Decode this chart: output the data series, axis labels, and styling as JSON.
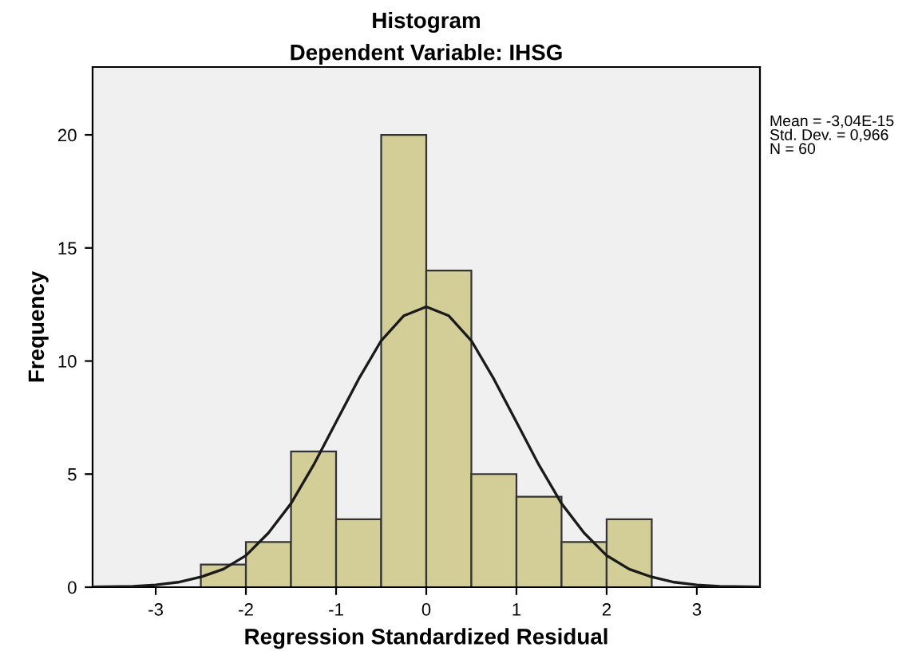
{
  "chart_data": {
    "type": "histogram",
    "title": "Histogram",
    "subtitle": "Dependent Variable: IHSG",
    "xlabel": "Regression Standardized Residual",
    "ylabel": "Frequency",
    "bins": [
      -2.5,
      -2.0,
      -1.5,
      -1.0,
      -0.5,
      0.0,
      0.5,
      1.0,
      1.5,
      2.0,
      2.5
    ],
    "values": [
      1,
      2,
      6,
      3,
      20,
      14,
      5,
      4,
      2,
      3
    ],
    "color": "#d3ce97",
    "series": [
      {
        "type": "line",
        "color": "#1a1a1a",
        "x": [
          -3.7,
          -3.25,
          -3.0,
          -2.75,
          -2.5,
          -2.25,
          -2.0,
          -1.75,
          -1.5,
          -1.25,
          -1.0,
          -0.75,
          -0.5,
          -0.25,
          0.0,
          0.25,
          0.5,
          0.75,
          1.0,
          1.25,
          1.5,
          1.75,
          2.0,
          2.25,
          2.5,
          2.75,
          3.0,
          3.25,
          3.7
        ],
        "values": [
          0.01,
          0.04,
          0.1,
          0.22,
          0.45,
          0.8,
          1.4,
          2.4,
          3.7,
          5.4,
          7.3,
          9.2,
          10.9,
          12.0,
          12.4,
          12.0,
          10.9,
          9.2,
          7.3,
          5.4,
          3.7,
          2.4,
          1.4,
          0.8,
          0.45,
          0.22,
          0.1,
          0.04,
          0.01
        ]
      }
    ],
    "xlim": [
      -3.7,
      3.7
    ],
    "ylim": [
      0,
      23
    ],
    "xticks": [
      -3,
      -2,
      -1,
      0,
      1,
      2,
      3
    ],
    "yticks": [
      0,
      5,
      10,
      15,
      20
    ],
    "grid": false,
    "legend": false,
    "annotations": [
      "Mean = -3,04E-15\nStd. Dev. = 0,966\nN = 60"
    ]
  }
}
